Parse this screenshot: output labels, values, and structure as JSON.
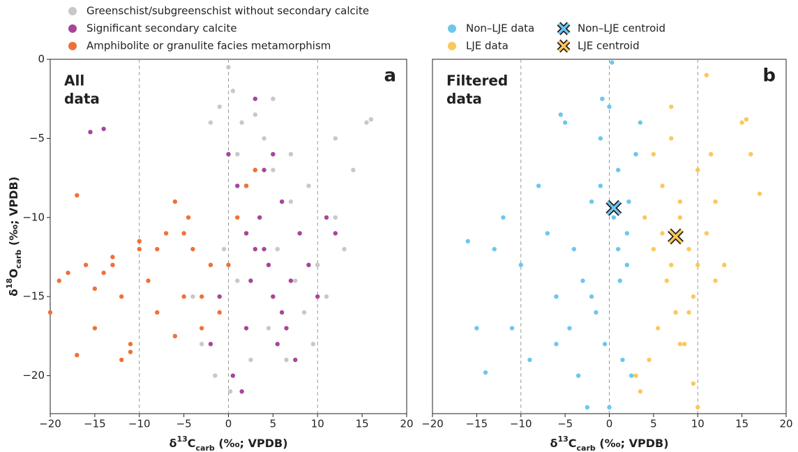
{
  "chart_data": [
    {
      "type": "scatter",
      "panel_label": "a",
      "annotation": [
        "All",
        "data"
      ],
      "xlabel": [
        {
          "text": "δ"
        },
        {
          "text": "13",
          "shift": "super"
        },
        {
          "text": "C"
        },
        {
          "text": "carb",
          "shift": "sub"
        },
        {
          "text": " (‰; VPDB)"
        }
      ],
      "ylabel": [
        {
          "text": "δ"
        },
        {
          "text": "18",
          "shift": "super"
        },
        {
          "text": "O"
        },
        {
          "text": "carb",
          "shift": "sub"
        },
        {
          "text": " (‰; VPDB)"
        }
      ],
      "xlim": [
        -20,
        20
      ],
      "ylim": [
        -22.4,
        0
      ],
      "xticks": [
        {
          "value": -20,
          "label": "−20"
        },
        {
          "value": -15,
          "label": "−15"
        },
        {
          "value": -10,
          "label": "−10"
        },
        {
          "value": -5,
          "label": "−5"
        },
        0,
        5,
        10,
        15,
        20
      ],
      "yticks": [
        0,
        {
          "value": -5,
          "label": "−5"
        },
        {
          "value": -10,
          "label": "−10"
        },
        {
          "value": -15,
          "label": "−15"
        },
        {
          "value": -20,
          "label": "−20"
        }
      ],
      "vlines": [
        -10,
        0,
        10
      ],
      "series": [
        {
          "name": "Greenschist/subgreenschist without secondary calcite",
          "color": "#c8c8c8",
          "x": [
            -2,
            -1,
            0,
            0.5,
            1,
            1.5,
            2,
            3,
            3.5,
            4,
            5,
            5.5,
            6,
            7,
            7.5,
            8,
            9,
            10,
            11,
            12,
            13,
            15.5,
            16,
            -3,
            -4,
            -1.5,
            0.2,
            2.5,
            4.5,
            6.5,
            8.5,
            9.5,
            1,
            2,
            3,
            5,
            7,
            -0.5,
            12,
            14
          ],
          "values": [
            -4,
            -3,
            -0.5,
            -2,
            -6,
            -4,
            -8,
            -3.5,
            -10,
            -5,
            -7,
            -12,
            -9,
            -6,
            -14,
            -11,
            -8,
            -13,
            -15,
            -10,
            -12,
            -4,
            -3.8,
            -18,
            -15,
            -20,
            -21,
            -19,
            -17,
            -19,
            -16,
            -18,
            -14,
            -11,
            -7,
            -2.5,
            -9,
            -12,
            -5,
            -7
          ]
        },
        {
          "name": "Significant secondary calcite",
          "color": "#a8459b",
          "x": [
            -15.5,
            -14,
            0,
            1,
            2,
            3,
            3.5,
            4,
            2.5,
            5,
            6,
            7,
            5.5,
            6.5,
            8,
            9,
            10,
            11,
            12,
            0.5,
            1.5,
            4.5,
            7.5,
            -2,
            -1,
            3,
            5,
            6,
            2,
            4
          ],
          "values": [
            -4.6,
            -4.4,
            -6,
            -8,
            -11,
            -12,
            -10,
            -7,
            -14,
            -15,
            -16,
            -14,
            -18,
            -17,
            -11,
            -13,
            -15,
            -10,
            -11,
            -20,
            -21,
            -13,
            -19,
            -18,
            -15,
            -2.5,
            -6,
            -9,
            -17,
            -12
          ]
        },
        {
          "name": "Amphibolite or granulite facies metamorphism",
          "color": "#ef7138",
          "x": [
            -20,
            -19,
            -18,
            -17,
            -16,
            -15,
            -14,
            -13,
            -12,
            -11,
            -10,
            -9,
            -8,
            -7,
            -6,
            -5,
            -4.5,
            -4,
            -3,
            -2,
            -1,
            0,
            1,
            2,
            3,
            -12,
            -11,
            -10,
            -6,
            -5,
            -17,
            -8,
            -15,
            -3,
            -13
          ],
          "values": [
            -16,
            -14,
            -13.5,
            -8.6,
            -13,
            -14.5,
            -13.5,
            -13,
            -15,
            -18.5,
            -12,
            -14,
            -16,
            -11,
            -17.5,
            -11,
            -10,
            -12,
            -15,
            -13,
            -16,
            -13,
            -10,
            -8,
            -7,
            -19,
            -18,
            -11.5,
            -9,
            -15,
            -18.7,
            -12,
            -17,
            -17,
            -12.5
          ]
        }
      ]
    },
    {
      "type": "scatter",
      "panel_label": "b",
      "annotation": [
        "Filtered",
        "data"
      ],
      "xlabel": [
        {
          "text": "δ"
        },
        {
          "text": "13",
          "shift": "super"
        },
        {
          "text": "C"
        },
        {
          "text": "carb",
          "shift": "sub"
        },
        {
          "text": " (‰; VPDB)"
        }
      ],
      "xlim": [
        -20,
        20
      ],
      "ylim": [
        -22.4,
        0
      ],
      "xticks": [
        {
          "value": -20,
          "label": "−20"
        },
        {
          "value": -15,
          "label": "−15"
        },
        {
          "value": -10,
          "label": "−10"
        },
        {
          "value": -5,
          "label": "−5"
        },
        0,
        5,
        10,
        15,
        20
      ],
      "vlines": [
        -10,
        0,
        10
      ],
      "series": [
        {
          "name": "Non–LJE data",
          "color": "#6ec6ee",
          "x": [
            -16,
            -15,
            -13,
            -12,
            -10,
            -8,
            -7,
            -6,
            -5,
            -4,
            -3,
            -2,
            -1,
            0,
            0.5,
            1,
            2,
            3,
            -1.5,
            -0.5,
            1.5,
            2.5,
            -3.5,
            -2.5,
            -4.5,
            0,
            1,
            -1,
            2,
            -6,
            -9,
            -11,
            -2,
            0.3,
            3.5,
            -5.5,
            -14,
            1.2,
            -0.8,
            2.2
          ],
          "values": [
            -11.5,
            -17,
            -12,
            -10,
            -13,
            -8,
            -11,
            -15,
            -4,
            -12,
            -14,
            -9,
            -5,
            -3,
            -10,
            -7,
            -13,
            -6,
            -16,
            -18,
            -19,
            -20,
            -20,
            -22,
            -17,
            -22,
            -12,
            -8,
            -11,
            -18,
            -19,
            -17,
            -15,
            -0.2,
            -4,
            -3.5,
            -19.8,
            -14,
            -2.5,
            -9
          ]
        },
        {
          "name": "LJE data",
          "color": "#fbc85a",
          "x": [
            4,
            5,
            6,
            7,
            8,
            9,
            10,
            11,
            12,
            13,
            15,
            15.5,
            16,
            17,
            6.5,
            7.5,
            8.5,
            9.5,
            5.5,
            4.5,
            3.5,
            5,
            6,
            7,
            8,
            9,
            10,
            11,
            12,
            3,
            7,
            8,
            10,
            11.5,
            9.5
          ],
          "values": [
            -10,
            -6,
            -8,
            -5,
            -9,
            -12,
            -7,
            -11,
            -14,
            -13,
            -4,
            -3.8,
            -6,
            -8.5,
            -14,
            -16,
            -18,
            -15,
            -17,
            -19,
            -21,
            -12,
            -11,
            -13,
            -10,
            -16,
            -22,
            -1,
            -9,
            -20,
            -3,
            -18,
            -13,
            -6,
            -20.5
          ]
        },
        {
          "name": "Non–LJE centroid",
          "color": "#6ec6ee",
          "marker": "x",
          "x": [
            0.5
          ],
          "values": [
            -9.4
          ]
        },
        {
          "name": "LJE centroid",
          "color": "#fbc85a",
          "marker": "x",
          "x": [
            7.5
          ],
          "values": [
            -11.2
          ]
        }
      ]
    }
  ]
}
